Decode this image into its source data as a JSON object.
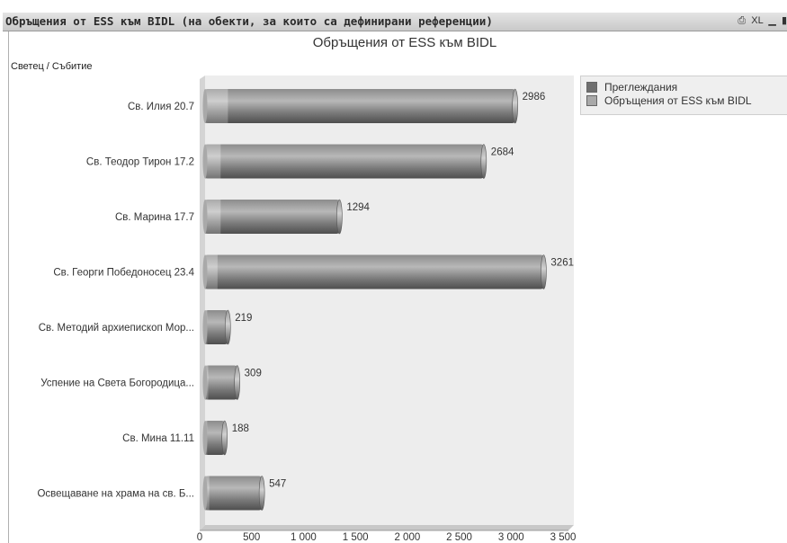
{
  "window": {
    "title": "Обръщения от ESS към BIDL (на обекти, за които са дефинирани референции)",
    "controls": [
      "⎙",
      "XL",
      "▁",
      "▮"
    ]
  },
  "chart_data": {
    "type": "bar",
    "orientation": "horizontal",
    "title": "Обръщения от ESS към BIDL",
    "axis_caption": "Светец / Събитие",
    "categories": [
      "Св. Илия 20.7",
      "Св. Теодор Тирон 17.2",
      "Св. Марина 17.7",
      "Св. Георги Победоносец 23.4",
      "Св. Методий архиепископ Мор...",
      "Успение на Света Богородица...",
      "Св. Мина 11.11",
      "Освещаване на храма на св. Б..."
    ],
    "series": [
      {
        "name": "Преглеждания",
        "color": "#6f6f6f",
        "values": [
          2986,
          2684,
          1294,
          3261,
          219,
          309,
          188,
          547
        ]
      },
      {
        "name": "Обръщения от ESS към BIDL",
        "color": "#a9a9a9",
        "values": [
          220,
          150,
          150,
          120,
          20,
          30,
          20,
          40
        ]
      }
    ],
    "value_labels": [
      "2986",
      "2684",
      "1294",
      "3261",
      "219",
      "309",
      "188",
      "547"
    ],
    "x_ticks": [
      0,
      500,
      1000,
      1500,
      2000,
      2500,
      3000,
      3500
    ],
    "x_tick_labels": [
      "0",
      "500",
      "1 000",
      "1 500",
      "2 000",
      "2 500",
      "3 000",
      "3 500"
    ],
    "xlim": [
      0,
      3500
    ],
    "legend_position": "right",
    "grid": false
  }
}
